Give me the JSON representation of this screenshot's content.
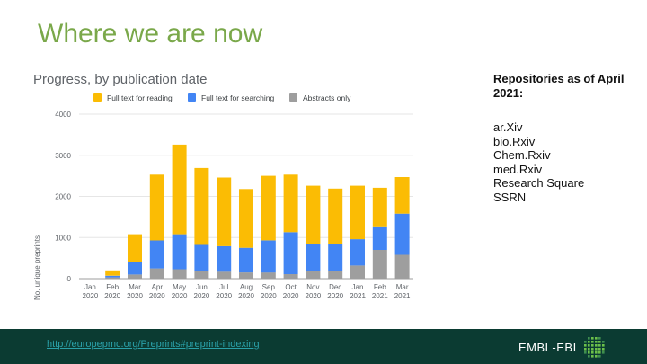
{
  "slide": {
    "title": "Where we are now"
  },
  "side_panel": {
    "heading": "Repositories as of April 2021:",
    "repositories": [
      "ar.Xiv",
      "bio.Rxiv",
      "Chem.Rxiv",
      "med.Rxiv",
      "Research Square",
      "SSRN"
    ]
  },
  "footer": {
    "link_text": "http://europepmc.org/Preprints#preprint-indexing",
    "logo_text": "EMBL-EBI",
    "logo_icon": "embl-ebi-logo-icon"
  },
  "colors": {
    "title": "#7aa84a",
    "reading": "#fbbc04",
    "searching": "#4285f4",
    "abstracts": "#9e9e9e",
    "footer_bg": "#0b3b32"
  },
  "chart_data": {
    "type": "bar",
    "stacked": true,
    "title": "Progress, by publication date",
    "xlabel": "",
    "ylabel": "No. unique preprints",
    "ylim": [
      0,
      4000
    ],
    "yticks": [
      0,
      1000,
      2000,
      3000,
      4000
    ],
    "grid": true,
    "legend_position": "top",
    "categories": [
      [
        "Jan",
        "2020"
      ],
      [
        "Feb",
        "2020"
      ],
      [
        "Mar",
        "2020"
      ],
      [
        "Apr",
        "2020"
      ],
      [
        "May",
        "2020"
      ],
      [
        "Jun",
        "2020"
      ],
      [
        "Jul",
        "2020"
      ],
      [
        "Aug",
        "2020"
      ],
      [
        "Sep",
        "2020"
      ],
      [
        "Oct",
        "2020"
      ],
      [
        "Nov",
        "2020"
      ],
      [
        "Dec",
        "2020"
      ],
      [
        "Jan",
        "2021"
      ],
      [
        "Feb",
        "2021"
      ],
      [
        "Mar",
        "2021"
      ]
    ],
    "series": [
      {
        "name": "Abstracts only",
        "color": "#9e9e9e",
        "values": [
          0,
          30,
          100,
          250,
          230,
          190,
          170,
          150,
          150,
          110,
          190,
          190,
          320,
          700,
          580
        ]
      },
      {
        "name": "Full text for searching",
        "color": "#4285f4",
        "values": [
          0,
          40,
          300,
          680,
          850,
          630,
          620,
          600,
          780,
          1020,
          640,
          650,
          640,
          550,
          1000
        ]
      },
      {
        "name": "Full text for reading",
        "color": "#fbbc04",
        "values": [
          0,
          130,
          680,
          1600,
          2180,
          1870,
          1670,
          1430,
          1570,
          1400,
          1430,
          1350,
          1300,
          960,
          890
        ]
      }
    ],
    "legend_order": [
      "Full text for reading",
      "Full text for searching",
      "Abstracts only"
    ]
  }
}
